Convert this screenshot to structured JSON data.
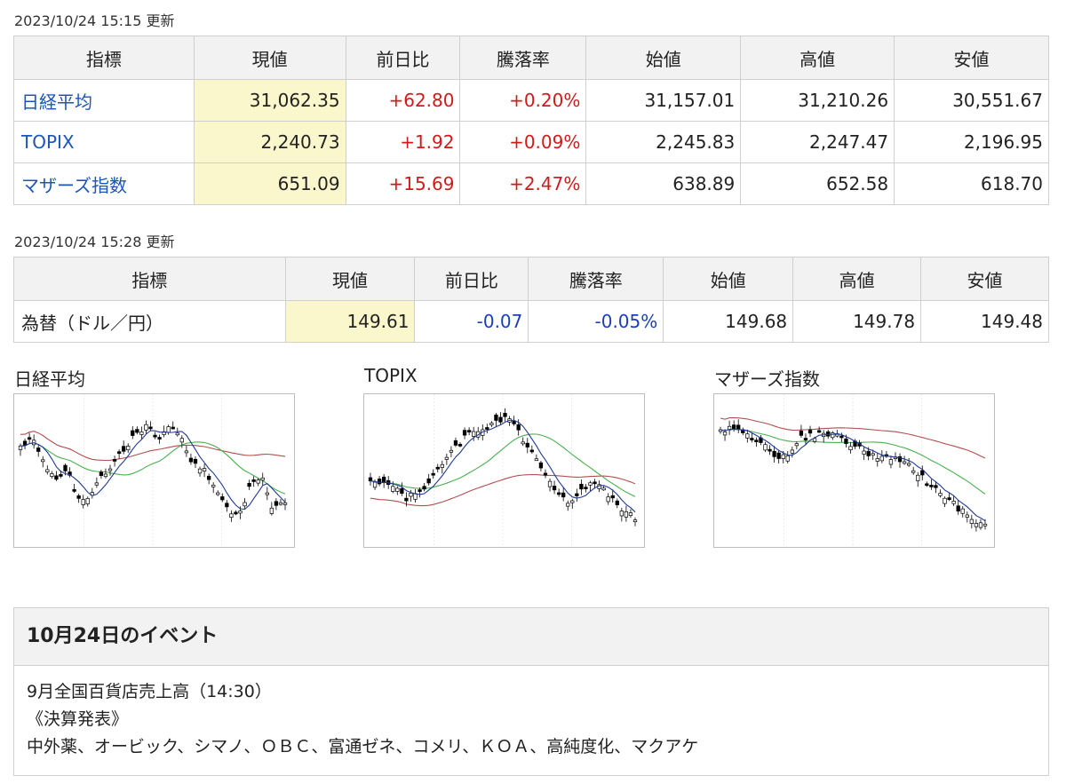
{
  "stocks": {
    "timestamp": "2023/10/24 15:15 更新",
    "headers": [
      "指標",
      "現値",
      "前日比",
      "騰落率",
      "始値",
      "高値",
      "安値"
    ],
    "rows": [
      {
        "name": "日経平均",
        "current": "31,062.35",
        "change": "+62.80",
        "rate": "+0.20%",
        "open": "31,157.01",
        "high": "31,210.26",
        "low": "30,551.67",
        "dir": "up"
      },
      {
        "name": "TOPIX",
        "current": "2,240.73",
        "change": "+1.92",
        "rate": "+0.09%",
        "open": "2,245.83",
        "high": "2,247.47",
        "low": "2,196.95",
        "dir": "up"
      },
      {
        "name": "マザーズ指数",
        "current": "651.09",
        "change": "+15.69",
        "rate": "+2.47%",
        "open": "638.89",
        "high": "652.58",
        "low": "618.70",
        "dir": "up"
      }
    ]
  },
  "forex": {
    "timestamp": "2023/10/24 15:28 更新",
    "headers": [
      "指標",
      "現値",
      "前日比",
      "騰落率",
      "始値",
      "高値",
      "安値"
    ],
    "row": {
      "name": "為替（ドル／円）",
      "current": "149.61",
      "change": "-0.07",
      "rate": "-0.05%",
      "open": "149.68",
      "high": "149.78",
      "low": "149.48",
      "dir": "down"
    }
  },
  "charts": [
    {
      "title": "日経平均",
      "type": "candlestick",
      "ma_colors": [
        "#1f3a93",
        "#4caf50",
        "#b05050"
      ]
    },
    {
      "title": "TOPIX",
      "type": "candlestick",
      "ma_colors": [
        "#1f3a93",
        "#4caf50",
        "#b05050"
      ]
    },
    {
      "title": "マザーズ指数",
      "type": "candlestick",
      "ma_colors": [
        "#1f3a93",
        "#4caf50",
        "#b05050"
      ]
    }
  ],
  "events": {
    "title": "10月24日のイベント",
    "lines": [
      "9月全国百貨店売上高（14:30）",
      "《決算発表》",
      "中外薬、オービック、シマノ、ＯＢＣ、富通ゼネ、コメリ、ＫＯＡ、高純度化、マクアケ"
    ]
  },
  "colors": {
    "up": "#d11a1a",
    "down": "#1a3fb8",
    "link": "#1a55b8",
    "highlight": "#fbf7cc"
  }
}
